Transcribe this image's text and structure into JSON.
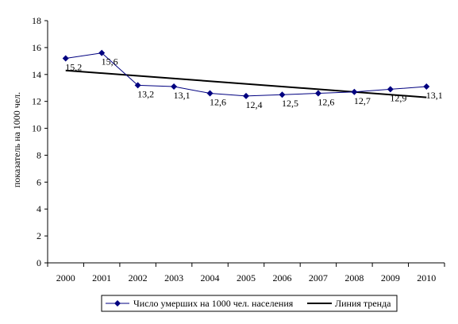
{
  "chart_data": {
    "type": "line",
    "x": [
      "2000",
      "2001",
      "2002",
      "2003",
      "2004",
      "2005",
      "2006",
      "2007",
      "2008",
      "2009",
      "2010"
    ],
    "series": [
      {
        "name": "Число умерших на 1000 чел. населения",
        "values": [
          15.2,
          15.6,
          13.2,
          13.1,
          12.6,
          12.4,
          12.5,
          12.6,
          12.7,
          12.9,
          13.1
        ],
        "labels": [
          "15,2",
          "15,6",
          "13,2",
          "13,1",
          "12,6",
          "12,4",
          "12,5",
          "12,6",
          "12,7",
          "12,9",
          "13,1"
        ],
        "color": "#000080",
        "marker": "diamond"
      },
      {
        "name": "Линия тренда",
        "type": "linear-trend",
        "start": 14.3,
        "end": 12.3,
        "color": "#000000"
      }
    ],
    "ylabel": "показатель на 1000 чел.",
    "xlabel": "",
    "ylim": [
      0,
      18
    ],
    "yticks": [
      "0",
      "2",
      "4",
      "6",
      "8",
      "10",
      "12",
      "14",
      "16",
      "18"
    ],
    "grid": false,
    "legend": "bottom"
  }
}
